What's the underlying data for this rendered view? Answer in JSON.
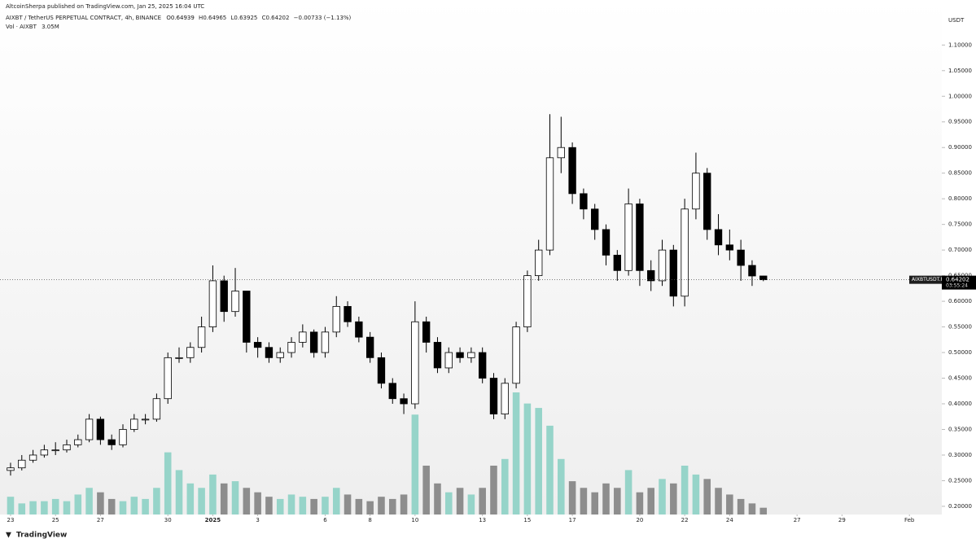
{
  "header": {
    "published": "AltcoinSherpa published on TradingView.com, Jan 25, 2025 16:04 UTC",
    "symbol": "AIXBT / TetherUS PERPETUAL CONTRACT, 4h, BINANCE",
    "ohlc_prefixes": [
      "O",
      "H",
      "L",
      "C"
    ],
    "change_label": "−0.00733 (−1.13%)",
    "price_symbol": "AIXBTUSDT.P",
    "countdown": "03:55:24",
    "units": "USDT",
    "logo": "TradingView"
  },
  "chart_data": {
    "type": "candlestick",
    "x": [
      0,
      0.5,
      1,
      1.5,
      2,
      2.5,
      3,
      3.5,
      4,
      4.5,
      5,
      5.5,
      6,
      6.5,
      7,
      7.5,
      8,
      8.5,
      9,
      9.5,
      10,
      10.5,
      11,
      11.5,
      12,
      12.5,
      13,
      13.5,
      14,
      14.5,
      15,
      15.5,
      16,
      16.5,
      17,
      17.5,
      18,
      18.5,
      19,
      19.5,
      20,
      20.5,
      21,
      21.5,
      22,
      22.5,
      23,
      23.5,
      24,
      24.5,
      25,
      25.5,
      26,
      26.5,
      27,
      27.5,
      28,
      28.5,
      29,
      29.5,
      30,
      30.5,
      31,
      31.5,
      32,
      32.5,
      33,
      33.5
    ],
    "open": [
      0.27,
      0.275,
      0.29,
      0.3,
      0.31,
      0.31,
      0.32,
      0.33,
      0.37,
      0.33,
      0.32,
      0.35,
      0.37,
      0.37,
      0.41,
      0.49,
      0.49,
      0.51,
      0.55,
      0.64,
      0.58,
      0.62,
      0.52,
      0.51,
      0.49,
      0.5,
      0.52,
      0.54,
      0.5,
      0.54,
      0.59,
      0.56,
      0.53,
      0.49,
      0.44,
      0.41,
      0.4,
      0.56,
      0.52,
      0.47,
      0.5,
      0.49,
      0.5,
      0.45,
      0.38,
      0.44,
      0.55,
      0.65,
      0.7,
      0.88,
      0.9,
      0.81,
      0.78,
      0.74,
      0.69,
      0.66,
      0.79,
      0.66,
      0.64,
      0.7,
      0.61,
      0.78,
      0.85,
      0.74,
      0.71,
      0.7,
      0.67,
      0.64939
    ],
    "high": [
      0.285,
      0.3,
      0.31,
      0.32,
      0.325,
      0.33,
      0.34,
      0.38,
      0.375,
      0.34,
      0.36,
      0.38,
      0.38,
      0.42,
      0.5,
      0.51,
      0.52,
      0.57,
      0.67,
      0.65,
      0.665,
      0.62,
      0.53,
      0.52,
      0.51,
      0.53,
      0.555,
      0.545,
      0.55,
      0.61,
      0.6,
      0.57,
      0.54,
      0.5,
      0.45,
      0.42,
      0.6,
      0.57,
      0.53,
      0.51,
      0.51,
      0.51,
      0.51,
      0.46,
      0.45,
      0.56,
      0.66,
      0.72,
      0.965,
      0.96,
      0.91,
      0.82,
      0.79,
      0.75,
      0.7,
      0.82,
      0.8,
      0.68,
      0.72,
      0.71,
      0.8,
      0.89,
      0.86,
      0.77,
      0.74,
      0.72,
      0.68,
      0.64965
    ],
    "low": [
      0.26,
      0.27,
      0.285,
      0.295,
      0.3,
      0.305,
      0.315,
      0.325,
      0.32,
      0.31,
      0.315,
      0.345,
      0.36,
      0.365,
      0.4,
      0.48,
      0.48,
      0.5,
      0.54,
      0.56,
      0.57,
      0.5,
      0.49,
      0.48,
      0.48,
      0.49,
      0.51,
      0.49,
      0.49,
      0.53,
      0.55,
      0.52,
      0.48,
      0.43,
      0.4,
      0.38,
      0.39,
      0.5,
      0.46,
      0.46,
      0.48,
      0.48,
      0.44,
      0.37,
      0.37,
      0.43,
      0.54,
      0.64,
      0.69,
      0.85,
      0.79,
      0.76,
      0.72,
      0.67,
      0.64,
      0.65,
      0.63,
      0.62,
      0.63,
      0.59,
      0.59,
      0.76,
      0.72,
      0.69,
      0.68,
      0.64,
      0.63,
      0.63925
    ],
    "close": [
      0.275,
      0.29,
      0.3,
      0.31,
      0.31,
      0.32,
      0.33,
      0.37,
      0.33,
      0.32,
      0.35,
      0.37,
      0.37,
      0.41,
      0.49,
      0.49,
      0.51,
      0.55,
      0.64,
      0.58,
      0.62,
      0.52,
      0.51,
      0.49,
      0.5,
      0.52,
      0.54,
      0.5,
      0.54,
      0.59,
      0.56,
      0.53,
      0.49,
      0.44,
      0.41,
      0.4,
      0.56,
      0.52,
      0.47,
      0.5,
      0.49,
      0.5,
      0.45,
      0.38,
      0.44,
      0.55,
      0.65,
      0.7,
      0.88,
      0.9,
      0.81,
      0.78,
      0.74,
      0.69,
      0.66,
      0.79,
      0.66,
      0.64,
      0.7,
      0.61,
      0.78,
      0.85,
      0.74,
      0.71,
      0.7,
      0.67,
      0.64939,
      0.64202
    ],
    "volume": {
      "name": "Vol · AIXBT",
      "values": [
        8000000,
        5000000,
        6000000,
        6000000,
        7000000,
        6000000,
        9000000,
        12000000,
        10000000,
        7000000,
        6000000,
        8000000,
        7000000,
        12000000,
        28000000,
        20000000,
        14000000,
        12000000,
        18000000,
        14000000,
        15000000,
        12000000,
        10000000,
        8000000,
        7000000,
        9000000,
        8000000,
        7000000,
        8000000,
        12000000,
        9000000,
        7000000,
        6000000,
        8000000,
        7000000,
        9000000,
        45000000,
        22000000,
        14000000,
        10000000,
        12000000,
        9000000,
        12000000,
        22000000,
        25000000,
        55000000,
        50000000,
        48000000,
        40000000,
        25000000,
        15000000,
        12000000,
        10000000,
        14000000,
        12000000,
        20000000,
        10000000,
        12000000,
        16000000,
        14000000,
        22000000,
        18000000,
        16000000,
        12000000,
        9000000,
        7000000,
        5000000,
        3050000
      ],
      "last_label": "3.05M",
      "up_color": "#86cfc2",
      "down_color": "#7b7b7b"
    },
    "up_color": "#ffffff",
    "down_color": "#000000",
    "border_color": "#000000",
    "xlim": [
      -0.47,
      41.37
    ],
    "xticks": [
      {
        "value": 0,
        "label": "23"
      },
      {
        "value": 2,
        "label": "25"
      },
      {
        "value": 4,
        "label": "27"
      },
      {
        "value": 7,
        "label": "30"
      },
      {
        "value": 9,
        "label": "2025"
      },
      {
        "value": 11,
        "label": "3"
      },
      {
        "value": 14,
        "label": "6"
      },
      {
        "value": 16,
        "label": "8"
      },
      {
        "value": 18,
        "label": "10"
      },
      {
        "value": 21,
        "label": "13"
      },
      {
        "value": 23,
        "label": "15"
      },
      {
        "value": 25,
        "label": "17"
      },
      {
        "value": 28,
        "label": "20"
      },
      {
        "value": 30,
        "label": "22"
      },
      {
        "value": 32,
        "label": "24"
      },
      {
        "value": 35,
        "label": "27"
      },
      {
        "value": 37,
        "label": "29"
      },
      {
        "value": 40,
        "label": "Feb"
      }
    ],
    "ylim": [
      0.184,
      1.164
    ],
    "yticks": [
      {
        "value": 0.2,
        "label": "0.20000"
      },
      {
        "value": 0.25,
        "label": "0.25000"
      },
      {
        "value": 0.3,
        "label": "0.30000"
      },
      {
        "value": 0.35,
        "label": "0.35000"
      },
      {
        "value": 0.4,
        "label": "0.40000"
      },
      {
        "value": 0.45,
        "label": "0.45000"
      },
      {
        "value": 0.5,
        "label": "0.50000"
      },
      {
        "value": 0.55,
        "label": "0.55000"
      },
      {
        "value": 0.6,
        "label": "0.60000"
      },
      {
        "value": 0.65,
        "label": "0.65000"
      },
      {
        "value": 0.7,
        "label": "0.70000"
      },
      {
        "value": 0.75,
        "label": "0.75000"
      },
      {
        "value": 0.8,
        "label": "0.80000"
      },
      {
        "value": 0.85,
        "label": "0.85000"
      },
      {
        "value": 0.9,
        "label": "0.90000"
      },
      {
        "value": 0.95,
        "label": "0.95000"
      },
      {
        "value": 1.0,
        "label": "1.00000"
      },
      {
        "value": 1.05,
        "label": "1.05000"
      },
      {
        "value": 1.1,
        "label": "1.10000"
      }
    ]
  }
}
